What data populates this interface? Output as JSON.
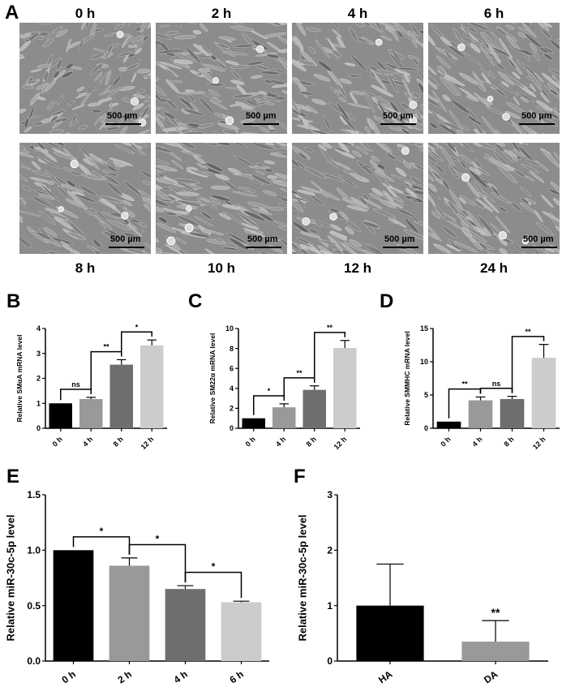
{
  "panels": {
    "A": "A",
    "B": "B",
    "C": "C",
    "D": "D",
    "E": "E",
    "F": "F"
  },
  "micrographs": {
    "scale_label": "500 µm",
    "top_row": [
      "0 h",
      "2 h",
      "4 h",
      "6 h"
    ],
    "bottom_row": [
      "8 h",
      "10 h",
      "12 h",
      "24 h"
    ]
  },
  "chart_data": [
    {
      "id": "B",
      "type": "bar",
      "ylabel": "Relative SMαA mRNA  level",
      "categories": [
        "0 h",
        "4 h",
        "8 h",
        "12 h"
      ],
      "values": [
        1.0,
        1.17,
        2.55,
        3.32
      ],
      "errors": [
        0,
        0.07,
        0.2,
        0.22
      ],
      "colors": [
        "#000000",
        "#999999",
        "#6e6e6e",
        "#cccccc"
      ],
      "ylim": [
        0,
        4
      ],
      "yticks": [
        "0",
        "1",
        "2",
        "3",
        "4"
      ],
      "significance": [
        {
          "from": 0,
          "to": 1,
          "label": "ns"
        },
        {
          "from": 1,
          "to": 2,
          "label": "**"
        },
        {
          "from": 2,
          "to": 3,
          "label": "*"
        }
      ]
    },
    {
      "id": "C",
      "type": "bar",
      "ylabel": "Relative SM22α mRNA  level",
      "categories": [
        "0 h",
        "4 h",
        "8 h",
        "12 h"
      ],
      "values": [
        1.0,
        2.1,
        3.85,
        8.05
      ],
      "errors": [
        0,
        0.35,
        0.4,
        0.75
      ],
      "colors": [
        "#000000",
        "#999999",
        "#6e6e6e",
        "#cccccc"
      ],
      "ylim": [
        0,
        10
      ],
      "yticks": [
        "0",
        "2",
        "4",
        "6",
        "8",
        "10"
      ],
      "significance": [
        {
          "from": 0,
          "to": 1,
          "label": "*"
        },
        {
          "from": 1,
          "to": 2,
          "label": "**"
        },
        {
          "from": 2,
          "to": 3,
          "label": "**"
        }
      ]
    },
    {
      "id": "D",
      "type": "bar",
      "ylabel": "Relative SMMHC mRNA  level",
      "categories": [
        "0 h",
        "4 h",
        "8 h",
        "12 h"
      ],
      "values": [
        1.0,
        4.2,
        4.4,
        10.6
      ],
      "errors": [
        0,
        0.5,
        0.4,
        2.0
      ],
      "colors": [
        "#000000",
        "#999999",
        "#6e6e6e",
        "#cccccc"
      ],
      "ylim": [
        0,
        15
      ],
      "yticks": [
        "0",
        "5",
        "10",
        "15"
      ],
      "significance": [
        {
          "from": 0,
          "to": 1,
          "label": "**"
        },
        {
          "from": 1,
          "to": 2,
          "label": "ns"
        },
        {
          "from": 2,
          "to": 3,
          "label": "**"
        }
      ]
    },
    {
      "id": "E",
      "type": "bar",
      "ylabel": "Relative miR-30c-5p level",
      "categories": [
        "0 h",
        "2 h",
        "4 h",
        "6 h"
      ],
      "values": [
        1.0,
        0.86,
        0.65,
        0.53
      ],
      "errors": [
        0,
        0.07,
        0.03,
        0.01
      ],
      "colors": [
        "#000000",
        "#999999",
        "#6e6e6e",
        "#cccccc"
      ],
      "ylim": [
        0,
        1.5
      ],
      "yticks": [
        "0.0",
        "0.5",
        "1.0",
        "1.5"
      ],
      "significance": [
        {
          "from": 0,
          "to": 1,
          "label": "*"
        },
        {
          "from": 1,
          "to": 2,
          "label": "*"
        },
        {
          "from": 2,
          "to": 3,
          "label": "*"
        }
      ]
    },
    {
      "id": "F",
      "type": "bar",
      "ylabel": "Relative miR-30c-5p level",
      "categories": [
        "HA",
        "DA"
      ],
      "values": [
        1.0,
        0.35
      ],
      "errors": [
        0.75,
        0.38
      ],
      "colors": [
        "#000000",
        "#999999"
      ],
      "ylim": [
        0,
        3
      ],
      "yticks": [
        "0",
        "1",
        "2",
        "3"
      ],
      "bar_annotations": [
        "",
        "**"
      ]
    }
  ]
}
